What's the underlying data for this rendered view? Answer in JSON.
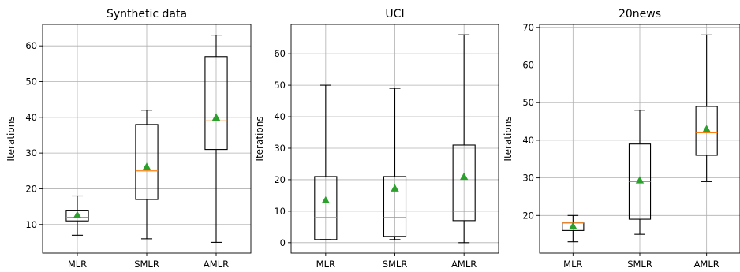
{
  "chart_data": [
    {
      "type": "box",
      "title": "Synthetic data",
      "xlabel": "",
      "ylabel": "Iterations",
      "categories": [
        "MLR",
        "SMLR",
        "AMLR"
      ],
      "ylim": [
        2,
        66
      ],
      "yticks": [
        10,
        20,
        30,
        40,
        50,
        60
      ],
      "grid": true,
      "boxes": [
        {
          "whisker_low": 7,
          "q1": 11,
          "median": 12,
          "q3": 14,
          "whisker_high": 18,
          "mean": 12.7
        },
        {
          "whisker_low": 6,
          "q1": 17,
          "median": 25,
          "q3": 38,
          "whisker_high": 42,
          "mean": 26.2
        },
        {
          "whisker_low": 5,
          "q1": 31,
          "median": 39,
          "q3": 57,
          "whisker_high": 63,
          "mean": 40
        }
      ]
    },
    {
      "type": "box",
      "title": "UCI",
      "xlabel": "",
      "ylabel": "Iterations",
      "categories": [
        "MLR",
        "SMLR",
        "AMLR"
      ],
      "ylim": [
        -3.3,
        69.3
      ],
      "yticks": [
        0,
        10,
        20,
        30,
        40,
        50,
        60
      ],
      "grid": true,
      "boxes": [
        {
          "whisker_low": 1,
          "q1": 1,
          "median": 8,
          "q3": 21,
          "whisker_high": 50,
          "mean": 13.5
        },
        {
          "whisker_low": 1,
          "q1": 2,
          "median": 8,
          "q3": 21,
          "whisker_high": 49,
          "mean": 17.3
        },
        {
          "whisker_low": 0,
          "q1": 7,
          "median": 10,
          "q3": 31,
          "whisker_high": 66,
          "mean": 21
        }
      ]
    },
    {
      "type": "box",
      "title": "20news",
      "xlabel": "",
      "ylabel": "Iterations",
      "categories": [
        "MLR",
        "SMLR",
        "AMLR"
      ],
      "ylim": [
        10,
        70.8
      ],
      "yticks": [
        20,
        30,
        40,
        50,
        60,
        70
      ],
      "grid": true,
      "boxes": [
        {
          "whisker_low": 13,
          "q1": 16,
          "median": 18,
          "q3": 18,
          "whisker_high": 20,
          "mean": 17.2
        },
        {
          "whisker_low": 15,
          "q1": 19,
          "median": 29,
          "q3": 39,
          "whisker_high": 48,
          "mean": 29.4
        },
        {
          "whisker_low": 29,
          "q1": 36,
          "median": 42,
          "q3": 49,
          "whisker_high": 68,
          "mean": 43
        }
      ]
    }
  ],
  "colors": {
    "median": "#ff7f0e",
    "mean_marker": "#2ca02c",
    "grid": "#b0b0b0",
    "box": "#000000"
  }
}
